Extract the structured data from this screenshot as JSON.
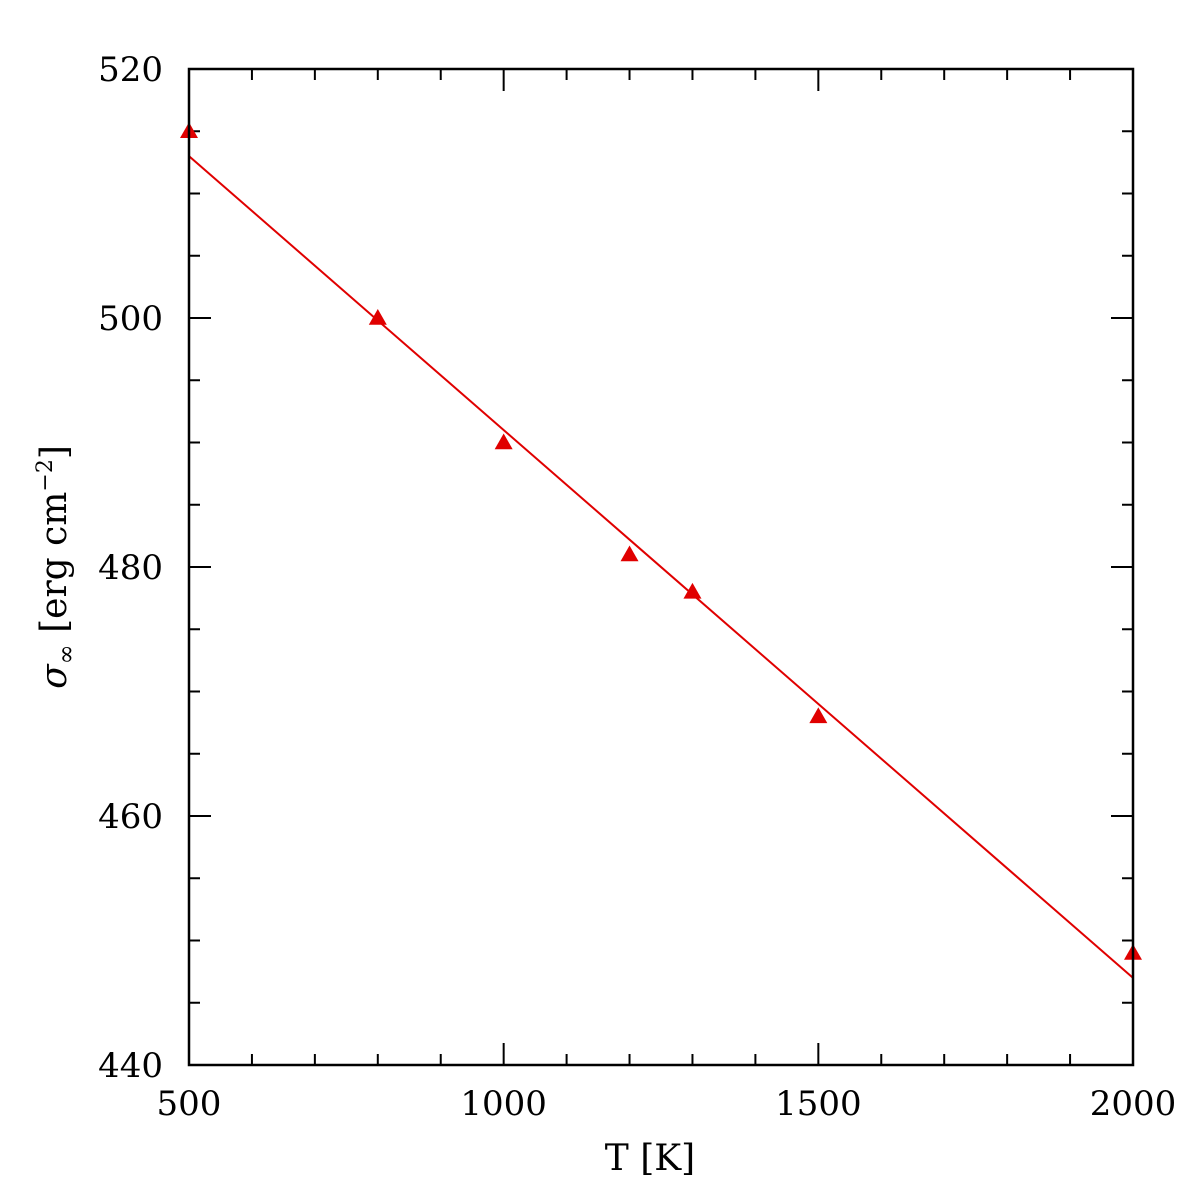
{
  "chart_data": {
    "type": "scatter",
    "title": "",
    "xlabel": "T [K]",
    "ylabel": "σ∞ [erg cm⁻²]",
    "ylabel_parts": {
      "symbol": "σ",
      "subscript": "∞",
      "units": " [erg cm",
      "exponent": "−2",
      "close": "]"
    },
    "xlim": [
      500,
      2000
    ],
    "ylim": [
      440,
      520
    ],
    "x_ticks": [
      500,
      1000,
      1500,
      2000
    ],
    "x_tick_labels": [
      "500",
      "1000",
      "1500",
      "2000"
    ],
    "x_minor_step": 100,
    "y_ticks": [
      440,
      460,
      480,
      500,
      520
    ],
    "y_tick_labels": [
      "440",
      "460",
      "480",
      "500",
      "520"
    ],
    "y_minor_step": 5,
    "grid": false,
    "series": [
      {
        "kind": "points",
        "marker": "triangle",
        "color": "#e00000",
        "x": [
          500,
          800,
          1000,
          1200,
          1300,
          1500,
          2000
        ],
        "y": [
          515,
          500,
          490,
          481,
          478,
          468,
          449
        ]
      },
      {
        "kind": "line",
        "color": "#e00000",
        "x": [
          500,
          2000
        ],
        "y": [
          513,
          447
        ]
      }
    ]
  }
}
